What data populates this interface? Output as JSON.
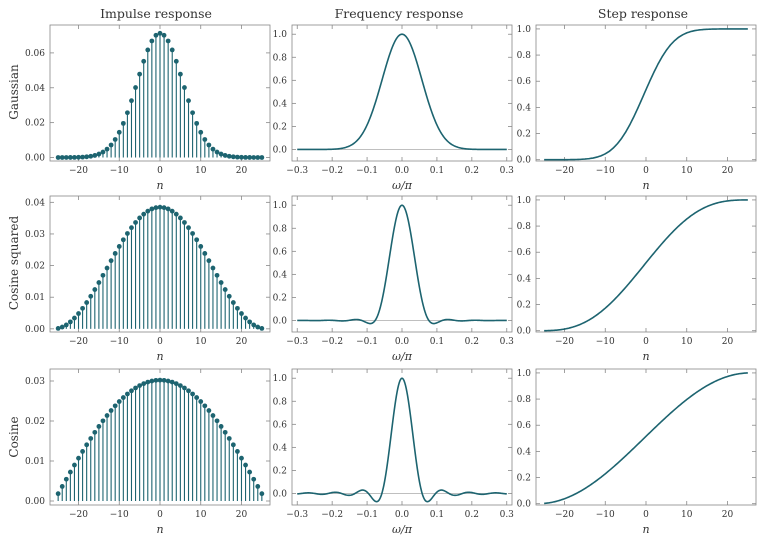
{
  "figure": {
    "column_titles": [
      "Impulse response",
      "Frequency response",
      "Step response"
    ],
    "row_labels": [
      "Gaussian",
      "Cosine squared",
      "Cosine"
    ]
  },
  "colors": {
    "series": "#1d6470",
    "zero_line": "#aaaaaa",
    "axes": "#888888"
  },
  "chart_data": [
    {
      "type": "stem",
      "row": 0,
      "col": 0,
      "series": "Gaussian",
      "xlabel": "n",
      "ylabel": "",
      "xlim": [
        -27,
        27
      ],
      "ylim": [
        -0.002,
        0.076
      ],
      "xticks": [
        -20,
        -10,
        0,
        10,
        20
      ],
      "yticks": [
        0,
        0.02,
        0.04,
        0.06
      ],
      "ytick_format": 2,
      "kernel": "gaussian",
      "n_range": [
        -25,
        25
      ]
    },
    {
      "type": "line",
      "row": 0,
      "col": 1,
      "series": "Gaussian",
      "xlabel": "ω/π",
      "ylabel": "",
      "xlim": [
        -0.315,
        0.315
      ],
      "ylim": [
        -0.1,
        1.08
      ],
      "xticks": [
        -0.3,
        -0.2,
        -0.1,
        0,
        0.1,
        0.2,
        0.3
      ],
      "yticks": [
        0,
        0.2,
        0.4,
        0.6,
        0.8,
        1.0
      ],
      "ytick_format": 1,
      "kernel": "gaussian",
      "zero_line": true
    },
    {
      "type": "line",
      "row": 0,
      "col": 2,
      "series": "Gaussian",
      "xlabel": "n",
      "ylabel": "",
      "xlim": [
        -27,
        27
      ],
      "ylim": [
        -0.01,
        1.03
      ],
      "xticks": [
        -20,
        -10,
        0,
        10,
        20
      ],
      "yticks": [
        0,
        0.2,
        0.4,
        0.6,
        0.8,
        1.0
      ],
      "ytick_format": 1,
      "kernel": "gaussian",
      "cumulative": true
    },
    {
      "type": "stem",
      "row": 1,
      "col": 0,
      "series": "Cosine squared",
      "xlabel": "n",
      "ylabel": "",
      "xlim": [
        -27,
        27
      ],
      "ylim": [
        -0.001,
        0.042
      ],
      "xticks": [
        -20,
        -10,
        0,
        10,
        20
      ],
      "yticks": [
        0,
        0.01,
        0.02,
        0.03,
        0.04
      ],
      "ytick_format": 2,
      "kernel": "cosine_squared",
      "n_range": [
        -25,
        25
      ]
    },
    {
      "type": "line",
      "row": 1,
      "col": 1,
      "series": "Cosine squared",
      "xlabel": "ω/π",
      "ylabel": "",
      "xlim": [
        -0.315,
        0.315
      ],
      "ylim": [
        -0.1,
        1.08
      ],
      "xticks": [
        -0.3,
        -0.2,
        -0.1,
        0,
        0.1,
        0.2,
        0.3
      ],
      "yticks": [
        0,
        0.2,
        0.4,
        0.6,
        0.8,
        1.0
      ],
      "ytick_format": 1,
      "kernel": "cosine_squared",
      "zero_line": true
    },
    {
      "type": "line",
      "row": 1,
      "col": 2,
      "series": "Cosine squared",
      "xlabel": "n",
      "ylabel": "",
      "xlim": [
        -27,
        27
      ],
      "ylim": [
        -0.01,
        1.03
      ],
      "xticks": [
        -20,
        -10,
        0,
        10,
        20
      ],
      "yticks": [
        0,
        0.2,
        0.4,
        0.6,
        0.8,
        1.0
      ],
      "ytick_format": 1,
      "kernel": "cosine_squared",
      "cumulative": true
    },
    {
      "type": "stem",
      "row": 2,
      "col": 0,
      "series": "Cosine",
      "xlabel": "n",
      "ylabel": "",
      "xlim": [
        -27,
        27
      ],
      "ylim": [
        -0.001,
        0.033
      ],
      "xticks": [
        -20,
        -10,
        0,
        10,
        20
      ],
      "yticks": [
        0,
        0.01,
        0.02,
        0.03
      ],
      "ytick_format": 2,
      "kernel": "cosine",
      "n_range": [
        -25,
        25
      ]
    },
    {
      "type": "line",
      "row": 2,
      "col": 1,
      "series": "Cosine",
      "xlabel": "ω/π",
      "ylabel": "",
      "xlim": [
        -0.315,
        0.315
      ],
      "ylim": [
        -0.1,
        1.08
      ],
      "xticks": [
        -0.3,
        -0.2,
        -0.1,
        0,
        0.1,
        0.2,
        0.3
      ],
      "yticks": [
        0,
        0.2,
        0.4,
        0.6,
        0.8,
        1.0
      ],
      "ytick_format": 1,
      "kernel": "cosine",
      "zero_line": true
    },
    {
      "type": "line",
      "row": 2,
      "col": 2,
      "series": "Cosine",
      "xlabel": "n",
      "ylabel": "",
      "xlim": [
        -27,
        27
      ],
      "ylim": [
        -0.01,
        1.03
      ],
      "xticks": [
        -20,
        -10,
        0,
        10,
        20
      ],
      "yticks": [
        0,
        0.2,
        0.4,
        0.6,
        0.8,
        1.0
      ],
      "ytick_format": 1,
      "kernel": "cosine",
      "cumulative": true
    }
  ]
}
